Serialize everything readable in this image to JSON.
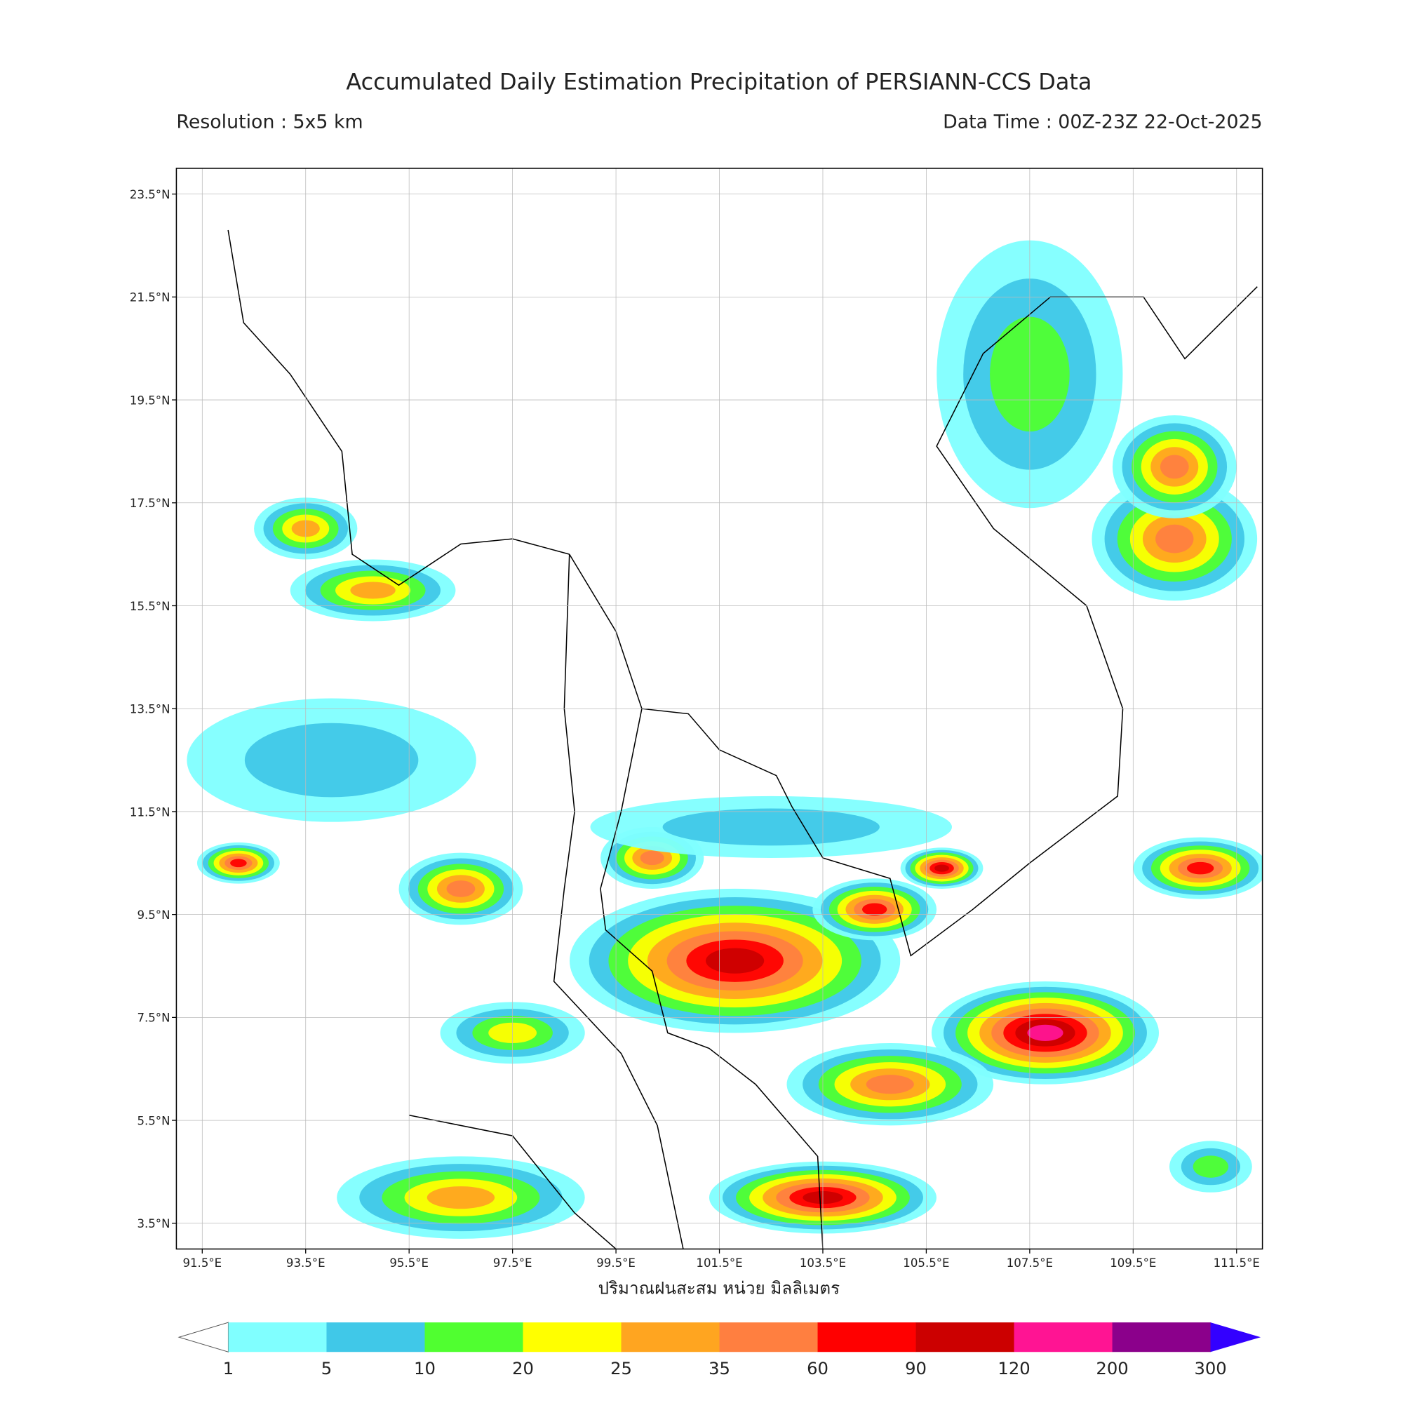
{
  "chart_data": {
    "type": "map",
    "title": "Accumulated Daily Estimation Precipitation of PERSIANN-CCS Data",
    "subtitle_left": "Resolution : 5x5 km",
    "subtitle_right": "Data Time : 00Z-23Z 22-Oct-2025",
    "xlabel": "ปริมาณฝนสะสม หน่วย มิลลิเมตร",
    "xlim": [
      91,
      112
    ],
    "ylim": [
      3,
      24
    ],
    "xticks": [
      {
        "value": 91.5,
        "label": "91.5°E"
      },
      {
        "value": 93.5,
        "label": "93.5°E"
      },
      {
        "value": 95.5,
        "label": "95.5°E"
      },
      {
        "value": 97.5,
        "label": "97.5°E"
      },
      {
        "value": 99.5,
        "label": "99.5°E"
      },
      {
        "value": 101.5,
        "label": "101.5°E"
      },
      {
        "value": 103.5,
        "label": "103.5°E"
      },
      {
        "value": 105.5,
        "label": "105.5°E"
      },
      {
        "value": 107.5,
        "label": "107.5°E"
      },
      {
        "value": 109.5,
        "label": "109.5°E"
      },
      {
        "value": 111.5,
        "label": "111.5°E"
      }
    ],
    "yticks": [
      {
        "value": 23.5,
        "label": "23.5°N"
      },
      {
        "value": 21.5,
        "label": "21.5°N"
      },
      {
        "value": 19.5,
        "label": "19.5°N"
      },
      {
        "value": 17.5,
        "label": "17.5°N"
      },
      {
        "value": 15.5,
        "label": "15.5°N"
      },
      {
        "value": 13.5,
        "label": "13.5°N"
      },
      {
        "value": 11.5,
        "label": "11.5°N"
      },
      {
        "value": 9.5,
        "label": "9.5°N"
      },
      {
        "value": 7.5,
        "label": "7.5°N"
      },
      {
        "value": 5.5,
        "label": "5.5°N"
      },
      {
        "value": 3.5,
        "label": "3.5°N"
      }
    ],
    "grid": true,
    "colorbar": {
      "levels": [
        1,
        5,
        10,
        20,
        25,
        35,
        60,
        90,
        120,
        200,
        300
      ],
      "colors": [
        "#80ffff",
        "#40c8e8",
        "#50ff30",
        "#ffff00",
        "#ffa520",
        "#ff7f40",
        "#ff0000",
        "#cc0000",
        "#ff1493",
        "#8b008b"
      ],
      "under_color": "#ffffff",
      "over_color": "#3300ff"
    }
  }
}
